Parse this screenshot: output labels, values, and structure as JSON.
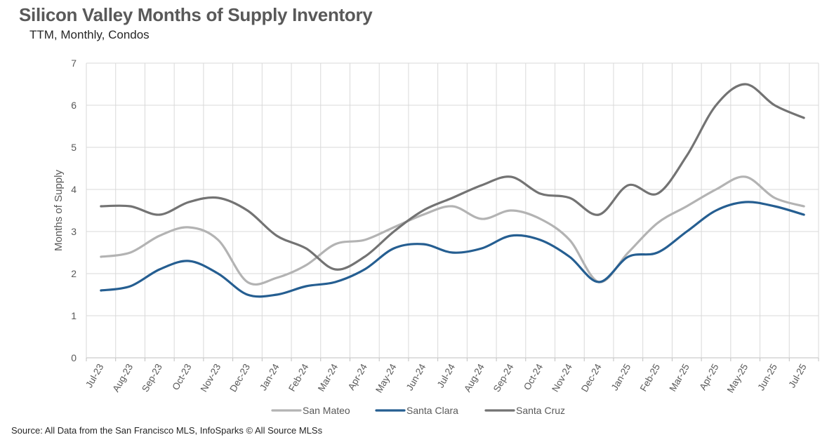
{
  "header": {
    "title": "Silicon Valley Months of Supply Inventory",
    "subtitle": "TTM, Monthly, Condos"
  },
  "footer": {
    "source": "Source: All Data from the San Francisco MLS, InfoSparks © All Source MLSs"
  },
  "chart_data": {
    "type": "line",
    "title": "Silicon Valley Months of Supply Inventory",
    "subtitle": "TTM, Monthly, Condos",
    "xlabel": "",
    "ylabel": "Months of Supply",
    "ylim": [
      0,
      7
    ],
    "yticks": [
      0,
      1,
      2,
      3,
      4,
      5,
      6,
      7
    ],
    "grid": true,
    "legend": "bottom",
    "categories": [
      "Jul-23",
      "Aug-23",
      "Sep-23",
      "Oct-23",
      "Nov-23",
      "Dec-23",
      "Jan-24",
      "Feb-24",
      "Mar-24",
      "Apr-24",
      "May-24",
      "Jun-24",
      "Jul-24",
      "Aug-24",
      "Sep-24",
      "Oct-24",
      "Nov-24",
      "Dec-24",
      "Jan-25",
      "Feb-25",
      "Mar-25",
      "Apr-25",
      "May-25",
      "Jun-25",
      "Jul-25"
    ],
    "series": [
      {
        "name": "San Mateo",
        "color": "#b3b3b3",
        "values": [
          2.4,
          2.5,
          2.9,
          3.1,
          2.8,
          1.8,
          1.9,
          2.2,
          2.7,
          2.8,
          3.1,
          3.4,
          3.6,
          3.3,
          3.5,
          3.3,
          2.8,
          1.8,
          2.5,
          3.2,
          3.6,
          4.0,
          4.3,
          3.8,
          3.6
        ]
      },
      {
        "name": "Santa Clara",
        "color": "#255e91",
        "values": [
          1.6,
          1.7,
          2.1,
          2.3,
          2.0,
          1.5,
          1.5,
          1.7,
          1.8,
          2.1,
          2.6,
          2.7,
          2.5,
          2.6,
          2.9,
          2.8,
          2.4,
          1.8,
          2.4,
          2.5,
          3.0,
          3.5,
          3.7,
          3.6,
          3.4
        ]
      },
      {
        "name": "Santa Cruz",
        "color": "#737373",
        "values": [
          3.6,
          3.6,
          3.4,
          3.7,
          3.8,
          3.5,
          2.9,
          2.6,
          2.1,
          2.4,
          3.0,
          3.5,
          3.8,
          4.1,
          4.3,
          3.9,
          3.8,
          3.4,
          4.1,
          3.9,
          4.8,
          6.0,
          6.5,
          6.0,
          5.7
        ]
      }
    ]
  }
}
